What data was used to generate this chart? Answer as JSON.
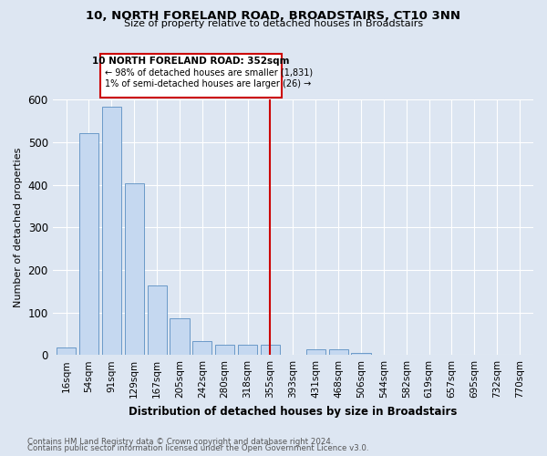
{
  "title": "10, NORTH FORELAND ROAD, BROADSTAIRS, CT10 3NN",
  "subtitle": "Size of property relative to detached houses in Broadstairs",
  "xlabel": "Distribution of detached houses by size in Broadstairs",
  "ylabel": "Number of detached properties",
  "categories": [
    "16sqm",
    "54sqm",
    "91sqm",
    "129sqm",
    "167sqm",
    "205sqm",
    "242sqm",
    "280sqm",
    "318sqm",
    "355sqm",
    "393sqm",
    "431sqm",
    "468sqm",
    "506sqm",
    "544sqm",
    "582sqm",
    "619sqm",
    "657sqm",
    "695sqm",
    "732sqm",
    "770sqm"
  ],
  "values": [
    18,
    522,
    583,
    403,
    163,
    87,
    33,
    23,
    24,
    25,
    0,
    13,
    13,
    5,
    0,
    0,
    0,
    0,
    0,
    0,
    0
  ],
  "bar_color": "#c5d8f0",
  "bar_edge_color": "#5a8fc2",
  "background_color": "#dde6f2",
  "grid_color": "#ffffff",
  "vline_x": 9,
  "vline_color": "#cc0000",
  "vline_label": "10 NORTH FORELAND ROAD: 352sqm",
  "annotation_line1": "← 98% of detached houses are smaller (1,831)",
  "annotation_line2": "1% of semi-detached houses are larger (26) →",
  "annotation_box_color": "#cc0000",
  "ylim": [
    0,
    600
  ],
  "yticks": [
    0,
    100,
    200,
    300,
    400,
    500,
    600
  ],
  "footnote1": "Contains HM Land Registry data © Crown copyright and database right 2024.",
  "footnote2": "Contains public sector information licensed under the Open Government Licence v3.0."
}
